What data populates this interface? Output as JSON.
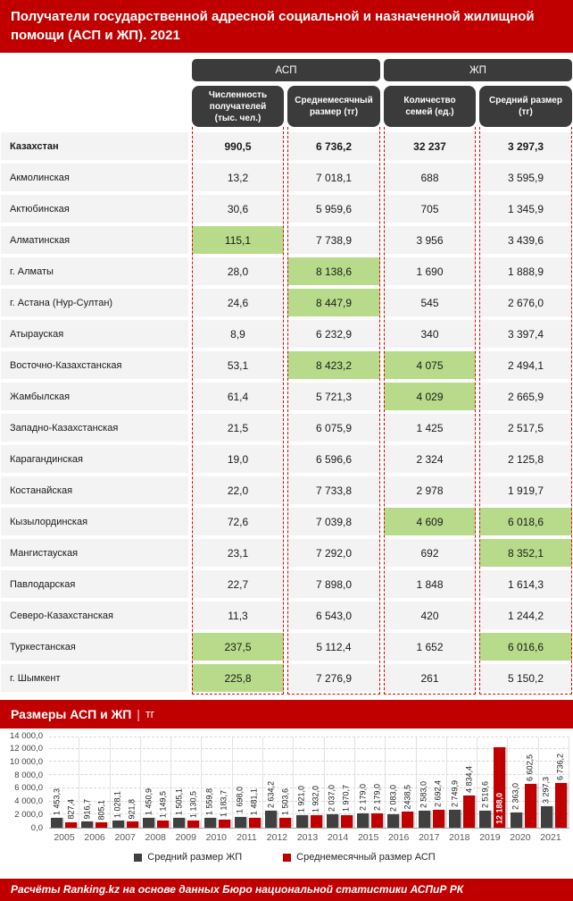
{
  "title": "Получатели государственной адресной социальной и назначенной жилищной помощи (АСП и ЖП). 2021",
  "colors": {
    "accent_red": "#c00000",
    "header_box": "#3b3b3b",
    "row_bg": "#f3f3f3",
    "highlight_green": "#b7db8b",
    "dashed_border": "#e30000",
    "bar_gray": "#404040",
    "bar_red": "#c00000"
  },
  "table": {
    "groups": [
      {
        "label": "АСП"
      },
      {
        "label": "ЖП"
      }
    ],
    "columns": [
      "Численность получателей (тыс. чел.)",
      "Среднемесячный размер (тг)",
      "Количество семей (ед.)",
      "Средний размер (тг)"
    ],
    "rows": [
      {
        "name": "Казахстан",
        "bold": true,
        "values": [
          "990,5",
          "6 736,2",
          "32 237",
          "3 297,3"
        ],
        "highlight": [
          0,
          0,
          0,
          0
        ]
      },
      {
        "name": "Акмолинская",
        "bold": false,
        "values": [
          "13,2",
          "7 018,1",
          "688",
          "3 595,9"
        ],
        "highlight": [
          0,
          0,
          0,
          0
        ]
      },
      {
        "name": "Актюбинская",
        "bold": false,
        "values": [
          "30,6",
          "5 959,6",
          "705",
          "1 345,9"
        ],
        "highlight": [
          0,
          0,
          0,
          0
        ]
      },
      {
        "name": "Алматинская",
        "bold": false,
        "values": [
          "115,1",
          "7 738,9",
          "3 956",
          "3 439,6"
        ],
        "highlight": [
          1,
          0,
          0,
          0
        ]
      },
      {
        "name": "г. Алматы",
        "bold": false,
        "values": [
          "28,0",
          "8 138,6",
          "1 690",
          "1 888,9"
        ],
        "highlight": [
          0,
          1,
          0,
          0
        ]
      },
      {
        "name": "г. Астана (Нур-Султан)",
        "bold": false,
        "values": [
          "24,6",
          "8 447,9",
          "545",
          "2 676,0"
        ],
        "highlight": [
          0,
          1,
          0,
          0
        ]
      },
      {
        "name": "Атырауская",
        "bold": false,
        "values": [
          "8,9",
          "6 232,9",
          "340",
          "3 397,4"
        ],
        "highlight": [
          0,
          0,
          0,
          0
        ]
      },
      {
        "name": "Восточно-Казахстанская",
        "bold": false,
        "values": [
          "53,1",
          "8 423,2",
          "4 075",
          "2 494,1"
        ],
        "highlight": [
          0,
          1,
          1,
          0
        ]
      },
      {
        "name": "Жамбылская",
        "bold": false,
        "values": [
          "61,4",
          "5 721,3",
          "4 029",
          "2 665,9"
        ],
        "highlight": [
          0,
          0,
          1,
          0
        ]
      },
      {
        "name": "Западно-Казахстанская",
        "bold": false,
        "values": [
          "21,5",
          "6 075,9",
          "1 425",
          "2 517,5"
        ],
        "highlight": [
          0,
          0,
          0,
          0
        ]
      },
      {
        "name": "Карагандинская",
        "bold": false,
        "values": [
          "19,0",
          "6 596,6",
          "2 324",
          "2 125,8"
        ],
        "highlight": [
          0,
          0,
          0,
          0
        ]
      },
      {
        "name": "Костанайская",
        "bold": false,
        "values": [
          "22,0",
          "7 733,8",
          "2 978",
          "1 919,7"
        ],
        "highlight": [
          0,
          0,
          0,
          0
        ]
      },
      {
        "name": "Кызылординская",
        "bold": false,
        "values": [
          "72,6",
          "7 039,8",
          "4 609",
          "6 018,6"
        ],
        "highlight": [
          0,
          0,
          1,
          1
        ]
      },
      {
        "name": "Мангистауская",
        "bold": false,
        "values": [
          "23,1",
          "7 292,0",
          "692",
          "8 352,1"
        ],
        "highlight": [
          0,
          0,
          0,
          1
        ]
      },
      {
        "name": "Павлодарская",
        "bold": false,
        "values": [
          "22,7",
          "7 898,0",
          "1 848",
          "1 614,3"
        ],
        "highlight": [
          0,
          0,
          0,
          0
        ]
      },
      {
        "name": "Северо-Казахстанская",
        "bold": false,
        "values": [
          "11,3",
          "6 543,0",
          "420",
          "1 244,2"
        ],
        "highlight": [
          0,
          0,
          0,
          0
        ]
      },
      {
        "name": "Туркестанская",
        "bold": false,
        "values": [
          "237,5",
          "5 112,4",
          "1 652",
          "6 016,6"
        ],
        "highlight": [
          1,
          0,
          0,
          1
        ]
      },
      {
        "name": "г. Шымкент",
        "bold": false,
        "values": [
          "225,8",
          "7 276,9",
          "261",
          "5 150,2"
        ],
        "highlight": [
          1,
          0,
          0,
          0
        ]
      }
    ]
  },
  "chart": {
    "header_title": "Размеры АСП и ЖП",
    "header_sep": "|",
    "header_unit": "тг"
  },
  "chart_data": {
    "type": "bar",
    "title": "Размеры АСП и ЖП | тг",
    "categories": [
      "2005",
      "2006",
      "2007",
      "2008",
      "2009",
      "2010",
      "2011",
      "2012",
      "2013",
      "2014",
      "2015",
      "2016",
      "2017",
      "2018",
      "2019",
      "2020",
      "2021"
    ],
    "series": [
      {
        "name": "Средний размер ЖП",
        "color": "#404040",
        "values": [
          1453.3,
          916.7,
          1028.1,
          1450.9,
          1505.1,
          1559.8,
          1698.0,
          2634.2,
          1921.0,
          2037.0,
          2179.0,
          2083.0,
          2583.0,
          2749.9,
          2519.6,
          2363.0,
          3297.3
        ],
        "labels": [
          "1 453,3",
          "916,7",
          "1 028,1",
          "1 450,9",
          "1 505,1",
          "1 559,8",
          "1 698,0",
          "2 634,2",
          "1 921,0",
          "2 037,0",
          "2 179,0",
          "2 083,0",
          "2 583,0",
          "2 749,9",
          "2 519,6",
          "2 363,0",
          "3 297,3"
        ]
      },
      {
        "name": "Среднемесячный размер АСП",
        "color": "#c00000",
        "values": [
          827.4,
          805.1,
          921.8,
          1149.5,
          1130.5,
          1183.7,
          1481.1,
          1503.6,
          1932.0,
          1970.7,
          2179.0,
          2438.5,
          2692.4,
          4834.4,
          12188.0,
          6602.5,
          6736.2
        ],
        "labels": [
          "827,4",
          "805,1",
          "921,8",
          "1 149,5",
          "1 130,5",
          "1 183,7",
          "1 481,1",
          "1 503,6",
          "1 932,0",
          "1 970,7",
          "2 179,0",
          "2438,5",
          "2 692,4",
          "4 834,4",
          "12 188,0",
          "6 602,5",
          "6 736,2"
        ]
      }
    ],
    "ylim": [
      0,
      14000
    ],
    "ytick_values": [
      14000,
      12000,
      10000,
      8000,
      6000,
      4000,
      2000,
      0
    ],
    "ytick_labels": [
      "14 000,0",
      "12 000,0",
      "10 000,0",
      "8 000,0",
      "6 000,0",
      "4 000,0",
      "2 000,0",
      "0,0"
    ],
    "grid": true,
    "legend_position": "bottom"
  },
  "footer": "Расчёты Ranking.kz на основе данных Бюро национальной статистики АСПиР РК"
}
